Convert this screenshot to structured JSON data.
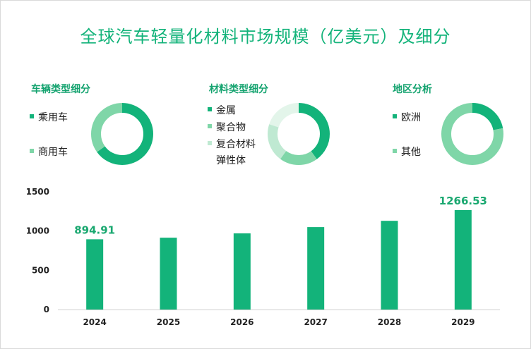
{
  "title": "全球汽车轻量化材料市场规模（亿美元）及细分",
  "panels": [
    {
      "title": "车辆类型细分",
      "legend": [
        {
          "label": "乘用车",
          "color": "#13b37a"
        },
        {
          "label": "商用车",
          "color": "#7fd6a8"
        }
      ]
    },
    {
      "title": "材料类型细分",
      "legend": [
        {
          "label": "金属",
          "color": "#13b37a"
        },
        {
          "label": "聚合物",
          "color": "#7fd6a8"
        },
        {
          "label": "复合材料",
          "color": "#bfe9d2"
        },
        {
          "label": "弹性体",
          "color": "#e3f5ea"
        }
      ]
    },
    {
      "title": "地区分析",
      "legend": [
        {
          "label": "欧洲",
          "color": "#13b37a"
        },
        {
          "label": "其他",
          "color": "#7fd6a8"
        }
      ]
    }
  ],
  "chart_data": [
    {
      "type": "pie",
      "variant": "donut",
      "title": "车辆类型细分",
      "categories": [
        "乘用车",
        "商用车"
      ],
      "values": [
        65,
        35
      ]
    },
    {
      "type": "pie",
      "variant": "donut",
      "title": "材料类型细分",
      "categories": [
        "金属",
        "聚合物",
        "复合材料",
        "弹性体"
      ],
      "values": [
        40,
        20,
        20,
        20
      ]
    },
    {
      "type": "pie",
      "variant": "donut",
      "title": "地区分析",
      "categories": [
        "欧洲",
        "其他"
      ],
      "values": [
        22,
        78
      ]
    },
    {
      "type": "bar",
      "categories": [
        "2024",
        "2025",
        "2026",
        "2027",
        "2028",
        "2029"
      ],
      "values": [
        894.91,
        915,
        970,
        1050,
        1130,
        1266.53
      ],
      "data_labels": {
        "0": "894.91",
        "5": "1266.53"
      },
      "ylim": [
        0,
        1500
      ],
      "yticks": [
        0,
        500,
        1000,
        1500
      ],
      "grid": false,
      "color": "#13b37a",
      "label_color": "#1aa870"
    }
  ]
}
